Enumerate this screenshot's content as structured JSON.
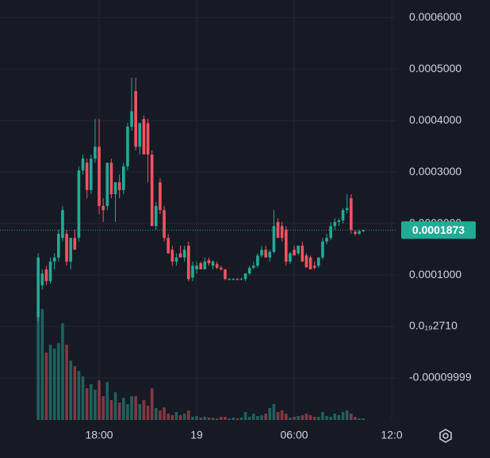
{
  "chart_data": {
    "type": "candlestick",
    "x": [
      14.25,
      14.5,
      14.75,
      15,
      15.25,
      15.5,
      15.75,
      16,
      16.25,
      16.5,
      16.75,
      17,
      17.25,
      17.5,
      17.75,
      18,
      18.25,
      18.5,
      18.75,
      19,
      19.25,
      19.5,
      19.75,
      20,
      20.25,
      20.5,
      20.75,
      21,
      21.25,
      21.5,
      21.75,
      22,
      22.25,
      22.5,
      22.75,
      23,
      23.25,
      23.5,
      23.75,
      24,
      24.25,
      24.5,
      24.75,
      25,
      25.25,
      25.5,
      25.75,
      26,
      26.25,
      26.5,
      26.75,
      27,
      27.25,
      27.5,
      27.75,
      28,
      28.25,
      28.5,
      28.75,
      29,
      29.25,
      29.5,
      29.75,
      30,
      30.25,
      30.5,
      30.75,
      31,
      31.25,
      31.5,
      31.75,
      32,
      32.25,
      32.5,
      32.75,
      33,
      33.25,
      33.5,
      33.75,
      34,
      34.25
    ],
    "open": [
      1.8e-05,
      8e-05,
      0.000111,
      8.8e-05,
      0.000126,
      0.000134,
      0.000172,
      0.00018,
      0.000126,
      0.000172,
      0.000172,
      0.000303,
      0.000318,
      0.000265,
      0.000326,
      0.000349,
      0.000234,
      0.000234,
      0.000318,
      0.000257,
      0.00028,
      0.000265,
      0.000311,
      0.000388,
      0.000457,
      0.000349,
      0.000403,
      0.000395,
      0.000334,
      0.000195,
      0.00028,
      0.000226,
      0.000172,
      0.000149,
      0.000126,
      0.000142,
      0.000134,
      0.000157,
      9.5e-05,
      0.000111,
      0.000123,
      0.000111,
      0.000129,
      0.000118,
      0.000121,
      0.000114,
      0.000111,
      9.2e-05,
      9.2e-05,
      9.2e-05,
      9.1e-05,
      9.2e-05,
      0.000103,
      0.000114,
      0.000118,
      0.000138,
      0.000149,
      0.000134,
      0.000145,
      0.000203,
      0.000195,
      0.000188,
      0.000126,
      0.000149,
      0.000142,
      0.000157,
      0.000138,
      0.000134,
      0.000118,
      0.000118,
      0.000134,
      0.000165,
      0.000172,
      0.000195,
      0.000203,
      0.000206,
      0.000226,
      0.000249,
      0.000184,
      0.00018,
      0.000185
    ],
    "high": [
      0.000142,
      0.000111,
      0.000118,
      0.000134,
      0.000142,
      0.000188,
      0.000234,
      0.000188,
      0.000172,
      0.000188,
      0.000311,
      0.000334,
      0.000326,
      0.000334,
      0.000403,
      0.000403,
      0.000249,
      0.000318,
      0.000326,
      0.00028,
      0.000295,
      0.000318,
      0.000395,
      0.000483,
      0.000483,
      0.000395,
      0.00041,
      0.000403,
      0.000342,
      0.000242,
      0.000288,
      0.000234,
      0.00018,
      0.000157,
      0.000142,
      0.000157,
      0.000157,
      0.000165,
      0.000126,
      0.000126,
      0.000126,
      0.000134,
      0.000134,
      0.000129,
      0.000126,
      0.000118,
      0.000111,
      9.5e-05,
      9.4e-05,
      9.4e-05,
      9.5e-05,
      0.000103,
      0.000118,
      0.000126,
      0.000142,
      0.000157,
      0.000157,
      0.000149,
      0.000226,
      0.00021,
      0.000203,
      0.000195,
      0.000145,
      0.000157,
      0.000157,
      0.000165,
      0.000142,
      0.000138,
      0.000126,
      0.000134,
      0.000172,
      0.00018,
      0.000203,
      0.00021,
      0.00021,
      0.00023,
      0.000257,
      0.000257,
      0.000188,
      0.000188,
      0.000188
    ],
    "low": [
      1e-05,
      7.2e-05,
      8e-05,
      8.3e-05,
      0.000111,
      0.000126,
      0.000165,
      0.000118,
      0.000111,
      0.000149,
      0.000165,
      0.000295,
      0.000249,
      0.000257,
      0.000318,
      0.000218,
      0.000203,
      0.000226,
      0.000249,
      0.000203,
      0.000249,
      0.000257,
      0.000303,
      0.00038,
      0.000342,
      0.000334,
      0.000334,
      0.00028,
      0.000195,
      0.000188,
      0.000218,
      0.000165,
      0.000142,
      0.000118,
      0.000118,
      0.000134,
      0.000126,
      8.8e-05,
      8.8e-05,
      0.000103,
      0.000111,
      0.000111,
      0.000118,
      0.000111,
      0.000111,
      0.000108,
      9e-05,
      9e-05,
      9e-05,
      9e-05,
      9e-05,
      8.8e-05,
      0.0001,
      0.000111,
      0.000114,
      0.000134,
      0.000134,
      0.000126,
      0.000142,
      0.000172,
      0.000165,
      0.000118,
      0.000121,
      0.000138,
      0.000138,
      0.000126,
      0.000114,
      0.000111,
      0.000111,
      0.000114,
      0.00013,
      0.00016,
      0.000168,
      0.000188,
      0.000195,
      0.0002,
      0.00022,
      0.00018,
      0.000176,
      0.000178,
      0.000183
    ],
    "close": [
      0.000134,
      0.000103,
      8.8e-05,
      0.000126,
      0.000134,
      0.00018,
      0.000226,
      0.000126,
      0.000172,
      0.000149,
      0.000303,
      0.000326,
      0.000265,
      0.000326,
      0.000349,
      0.000234,
      0.000226,
      0.000318,
      0.000257,
      0.00028,
      0.000265,
      0.000311,
      0.000388,
      0.000418,
      0.000349,
      0.000395,
      0.000334,
      0.000334,
      0.000195,
      0.000234,
      0.000226,
      0.000172,
      0.000142,
      0.000126,
      0.000134,
      0.000134,
      0.000149,
      9.2e-05,
      0.000118,
      0.000118,
      0.000111,
      0.000126,
      0.000123,
      0.000126,
      0.000114,
      0.000111,
      9.2e-05,
      9.2e-05,
      9.2e-05,
      9.1e-05,
      9.2e-05,
      0.000103,
      0.000114,
      0.000118,
      0.000138,
      0.000149,
      0.000134,
      0.000145,
      0.000195,
      0.000172,
      0.000172,
      0.000126,
      0.000142,
      0.000138,
      0.000157,
      0.000126,
      0.000115,
      0.000111,
      0.000114,
      0.000134,
      0.000165,
      0.000172,
      0.000195,
      0.000203,
      0.000206,
      0.000226,
      0.00023,
      0.000188,
      0.00018,
      0.000185,
      0.0001873
    ],
    "volume": [
      140,
      140,
      85,
      95,
      90,
      97,
      122,
      95,
      75,
      68,
      62,
      55,
      40,
      45,
      38,
      50,
      30,
      48,
      25,
      35,
      22,
      28,
      20,
      30,
      30,
      20,
      25,
      18,
      40,
      15,
      12,
      16,
      8,
      6,
      10,
      6,
      8,
      12,
      4,
      5,
      3,
      4,
      3,
      3,
      2,
      4,
      4,
      2,
      3,
      2,
      3,
      10,
      4,
      8,
      5,
      6,
      8,
      15,
      20,
      10,
      12,
      8,
      3,
      4,
      5,
      6,
      8,
      6,
      4,
      4,
      10,
      5,
      4,
      8,
      6,
      10,
      12,
      8,
      4,
      2,
      2
    ],
    "up_color": "#22ab94",
    "down_color": "#f7525f",
    "xlim": [
      11.9,
      36.29
    ],
    "xticks": [
      {
        "value": 18,
        "label": "18:00"
      },
      {
        "value": 24,
        "label": "19"
      },
      {
        "value": 30,
        "label": "06:00"
      },
      {
        "value": 36,
        "label": "12:0"
      }
    ],
    "ylim": [
      -0.0001815,
      0.000634
    ],
    "yticks": [
      {
        "value": 0.0006,
        "label": "0.0006000"
      },
      {
        "value": 0.0005,
        "label": "0.0005000"
      },
      {
        "value": 0.0004,
        "label": "0.0004000"
      },
      {
        "value": 0.0003,
        "label": "0.0003000"
      },
      {
        "value": 0.0002,
        "label": "0.0002000"
      },
      {
        "value": 0.0001,
        "label": "0.0001000"
      },
      {
        "value": 2.71e-20,
        "label": "0.0₁₉2710"
      },
      -9.999e-05
    ],
    "last_price": 0.0001873,
    "grid": true
  }
}
